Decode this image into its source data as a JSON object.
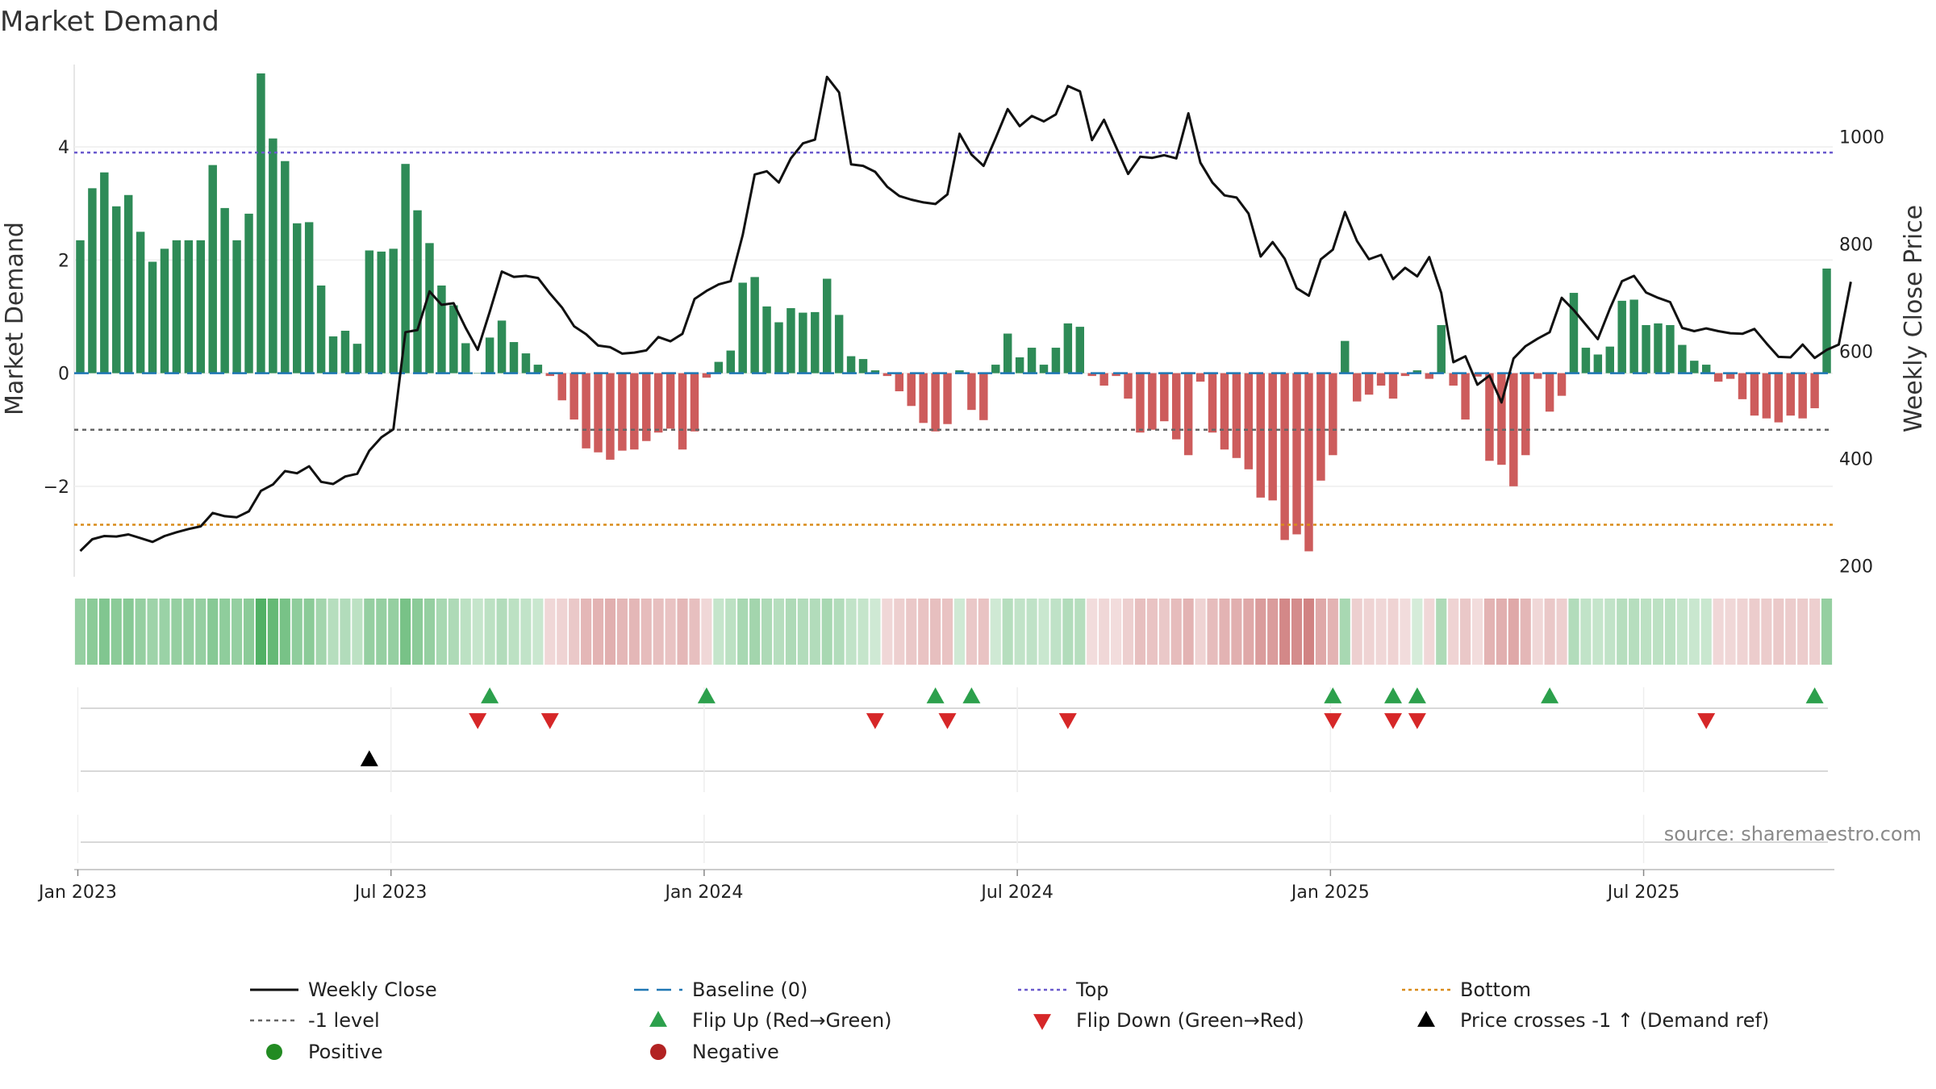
{
  "chart_data": {
    "type": "bar",
    "title": "Market Demand",
    "ylabel": "Market Demand",
    "y2label": "Weekly Close Price",
    "ylim": [
      -3.6,
      5.6
    ],
    "y2lim": [
      180,
      1150
    ],
    "yticks": [
      {
        "v": 4,
        "label": "4"
      },
      {
        "v": 2,
        "label": "2"
      },
      {
        "v": 0,
        "label": "0"
      },
      {
        "v": -2,
        "label": "−2"
      }
    ],
    "y2ticks": [
      1000,
      800,
      600,
      400,
      200
    ],
    "xticks": [
      "Jan 2023",
      "Jul 2023",
      "Jan 2024",
      "Jul 2024",
      "Jan 2025",
      "Jul 2025"
    ],
    "start_week_label": "Jan 2023",
    "top_level": 3.9,
    "bottom_level": -2.68,
    "minus_one_level": -1,
    "baseline_level": 0,
    "market_demand_weekly": [
      2.35,
      3.27,
      3.55,
      2.95,
      3.15,
      2.5,
      1.97,
      2.2,
      2.35,
      2.35,
      2.35,
      3.68,
      2.92,
      2.35,
      2.82,
      5.3,
      4.15,
      3.75,
      2.65,
      2.67,
      1.55,
      0.65,
      0.75,
      0.52,
      2.17,
      2.15,
      2.2,
      3.7,
      2.88,
      2.3,
      1.55,
      1.2,
      0.53,
      0.0,
      0.63,
      0.93,
      0.55,
      0.35,
      0.15,
      -0.05,
      -0.48,
      -0.82,
      -1.33,
      -1.4,
      -1.53,
      -1.37,
      -1.35,
      -1.2,
      -1.05,
      -0.98,
      -1.35,
      -1.03,
      -0.08,
      0.2,
      0.4,
      1.6,
      1.7,
      1.18,
      0.9,
      1.15,
      1.07,
      1.08,
      1.67,
      1.03,
      0.3,
      0.25,
      0.05,
      -0.05,
      -0.32,
      -0.58,
      -0.88,
      -1.03,
      -0.9,
      0.05,
      -0.65,
      -0.83,
      0.15,
      0.7,
      0.28,
      0.45,
      0.15,
      0.45,
      0.88,
      0.82,
      -0.05,
      -0.22,
      -0.05,
      -0.45,
      -1.05,
      -1.0,
      -0.85,
      -1.17,
      -1.45,
      -0.15,
      -1.05,
      -1.35,
      -1.5,
      -1.7,
      -2.2,
      -2.25,
      -2.95,
      -2.85,
      -3.15,
      -1.9,
      -1.45,
      0.57,
      -0.5,
      -0.38,
      -0.22,
      -0.45,
      -0.05,
      0.05,
      -0.1,
      0.85,
      -0.22,
      -0.82,
      -0.06,
      -1.55,
      -1.62,
      -2.0,
      -1.45,
      -0.1,
      -0.68,
      -0.4,
      1.42,
      0.45,
      0.33,
      0.47,
      1.28,
      1.3,
      0.85,
      0.88,
      0.85,
      0.5,
      0.22,
      0.15,
      -0.15,
      -0.1,
      -0.46,
      -0.75,
      -0.8,
      -0.87,
      -0.75,
      -0.8,
      -0.62,
      1.85
    ],
    "weekly_close": [
      228,
      250,
      256,
      255,
      259,
      252,
      245,
      256,
      263,
      269,
      274,
      299,
      293,
      291,
      302,
      340,
      352,
      377,
      373,
      386,
      357,
      353,
      367,
      372,
      415,
      440,
      455,
      636,
      640,
      712,
      687,
      690,
      644,
      603,
      674,
      749,
      739,
      741,
      737,
      708,
      682,
      647,
      632,
      611,
      608,
      596,
      598,
      602,
      627,
      619,
      633,
      698,
      713,
      725,
      731,
      817,
      930,
      936,
      915,
      960,
      988,
      995,
      1112,
      1083,
      949,
      946,
      935,
      907,
      890,
      883,
      878,
      875,
      893,
      1006,
      967,
      946,
      998,
      1052,
      1020,
      1039,
      1029,
      1042,
      1095,
      1085,
      994,
      1032,
      981,
      931,
      963,
      961,
      966,
      960,
      1044,
      952,
      915,
      891,
      887,
      857,
      777,
      804,
      773,
      718,
      704,
      772,
      790,
      860,
      806,
      772,
      780,
      735,
      756,
      740,
      776,
      709,
      580,
      591,
      538,
      555,
      505,
      587,
      610,
      624,
      636,
      700,
      677,
      650,
      623,
      680,
      731,
      741,
      710,
      700,
      692,
      644,
      638,
      643,
      638,
      634,
      633,
      642,
      615,
      590,
      589,
      613,
      588,
      603,
      613,
      730
    ],
    "demand_strip_weekly": [
      0.55,
      0.6,
      0.65,
      0.6,
      0.62,
      0.55,
      0.5,
      0.52,
      0.55,
      0.55,
      0.55,
      0.62,
      0.58,
      0.55,
      0.6,
      0.9,
      0.8,
      0.7,
      0.58,
      0.6,
      0.48,
      0.38,
      0.4,
      0.35,
      0.55,
      0.55,
      0.55,
      0.7,
      0.6,
      0.55,
      0.45,
      0.42,
      0.35,
      0.3,
      0.35,
      0.4,
      0.35,
      0.32,
      0.28,
      0.25,
      0.28,
      0.35,
      0.45,
      0.48,
      0.5,
      0.45,
      0.45,
      0.42,
      0.4,
      0.38,
      0.45,
      0.4,
      0.25,
      0.3,
      0.35,
      0.45,
      0.48,
      0.42,
      0.38,
      0.42,
      0.4,
      0.4,
      0.45,
      0.4,
      0.32,
      0.3,
      0.25,
      0.25,
      0.3,
      0.35,
      0.38,
      0.4,
      0.38,
      0.25,
      0.35,
      0.38,
      0.25,
      0.38,
      0.32,
      0.33,
      0.28,
      0.33,
      0.4,
      0.38,
      0.22,
      0.25,
      0.22,
      0.3,
      0.4,
      0.38,
      0.35,
      0.42,
      0.48,
      0.28,
      0.42,
      0.48,
      0.5,
      0.55,
      0.62,
      0.62,
      0.75,
      0.72,
      0.78,
      0.55,
      0.48,
      0.45,
      0.3,
      0.28,
      0.25,
      0.28,
      0.22,
      0.22,
      0.25,
      0.42,
      0.28,
      0.35,
      0.22,
      0.48,
      0.5,
      0.55,
      0.45,
      0.25,
      0.35,
      0.3,
      0.4,
      0.32,
      0.3,
      0.32,
      0.38,
      0.38,
      0.35,
      0.35,
      0.35,
      0.3,
      0.28,
      0.28,
      0.25,
      0.25,
      0.28,
      0.32,
      0.32,
      0.34,
      0.32,
      0.32,
      0.3,
      0.55
    ],
    "flip_up_weeks": [
      34,
      52,
      71,
      74,
      104,
      109,
      111,
      122,
      144
    ],
    "flip_down_weeks": [
      33,
      39,
      66,
      72,
      82,
      104,
      109,
      111,
      135
    ],
    "price_cross_weeks": [
      24
    ],
    "source": "source: sharemaestro.com",
    "legend": [
      {
        "key": "close",
        "label": "Weekly Close"
      },
      {
        "key": "baseline",
        "label": "Baseline (0)"
      },
      {
        "key": "top",
        "label": "Top"
      },
      {
        "key": "bottom",
        "label": "Bottom"
      },
      {
        "key": "minus1",
        "label": "-1 level"
      },
      {
        "key": "flipup",
        "label": "Flip Up (Red→Green)"
      },
      {
        "key": "flipdown",
        "label": "Flip Down (Green→Red)"
      },
      {
        "key": "cross",
        "label": "Price crosses -1 ↑ (Demand ref)"
      },
      {
        "key": "positive",
        "label": "Positive"
      },
      {
        "key": "negative",
        "label": "Negative"
      }
    ]
  },
  "colors": {
    "positive_bar": "#2e8b57",
    "negative_bar": "#cd5c5c",
    "close_line": "#111111",
    "baseline": "#1f77b4",
    "top": "#6a5acd",
    "bottom": "#d98c1a",
    "minus_one": "#666666",
    "flip_up": "#2ca04c",
    "flip_down": "#d62728",
    "cross": "#000000",
    "positive_dot": "#228b22",
    "negative_dot": "#b22222",
    "strip_pos": "#3ea854",
    "strip_neg": "#c46060"
  }
}
